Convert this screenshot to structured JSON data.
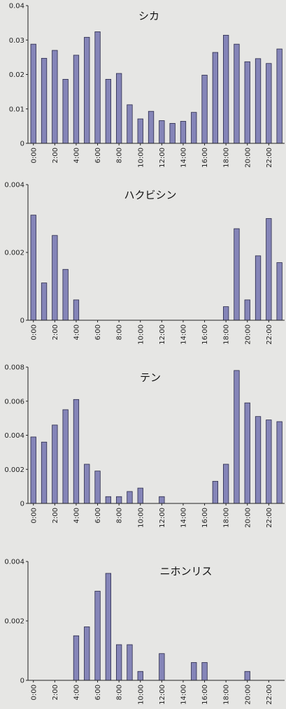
{
  "colors": {
    "bar": "#8585b8",
    "bar_stroke": "#2a2a4a",
    "axis": "#222222",
    "background": "#e6e6e4"
  },
  "chart_data": [
    {
      "type": "bar",
      "title": "シカ",
      "categories": [
        "0:00",
        "1:00",
        "2:00",
        "3:00",
        "4:00",
        "5:00",
        "6:00",
        "7:00",
        "8:00",
        "9:00",
        "10:00",
        "11:00",
        "12:00",
        "13:00",
        "14:00",
        "15:00",
        "16:00",
        "17:00",
        "18:00",
        "19:00",
        "20:00",
        "21:00",
        "22:00",
        "23:00"
      ],
      "tick_labels": [
        "0:00",
        "2:00",
        "4:00",
        "6:00",
        "8:00",
        "10:00",
        "12:00",
        "14:00",
        "16:00",
        "18:00",
        "20:00",
        "22:00"
      ],
      "values": [
        0.0288,
        0.0247,
        0.027,
        0.0186,
        0.0256,
        0.0308,
        0.0324,
        0.0186,
        0.0203,
        0.0112,
        0.0071,
        0.0093,
        0.0066,
        0.0058,
        0.0064,
        0.009,
        0.0198,
        0.0264,
        0.0314,
        0.0288,
        0.0237,
        0.0246,
        0.0232,
        0.0274
      ],
      "ylim": [
        0,
        0.04
      ],
      "yticks": [
        "0",
        "0.01",
        "0.02",
        "0.03",
        "0.04"
      ],
      "ytick_values": [
        0,
        0.01,
        0.02,
        0.03,
        0.04
      ],
      "xlabel": "",
      "ylabel": ""
    },
    {
      "type": "bar",
      "title": "ハクビシン",
      "categories": [
        "0:00",
        "1:00",
        "2:00",
        "3:00",
        "4:00",
        "5:00",
        "6:00",
        "7:00",
        "8:00",
        "9:00",
        "10:00",
        "11:00",
        "12:00",
        "13:00",
        "14:00",
        "15:00",
        "16:00",
        "17:00",
        "18:00",
        "19:00",
        "20:00",
        "21:00",
        "22:00",
        "23:00"
      ],
      "tick_labels": [
        "0:00",
        "2:00",
        "4:00",
        "6:00",
        "8:00",
        "10:00",
        "12:00",
        "14:00",
        "16:00",
        "18:00",
        "20:00",
        "22:00"
      ],
      "values": [
        0.0031,
        0.0011,
        0.0025,
        0.0015,
        0.0006,
        0,
        0,
        0,
        0,
        0,
        0,
        0,
        0,
        0,
        0,
        0,
        0,
        0,
        0.0004,
        0.0027,
        0.0006,
        0.0019,
        0.003,
        0.0017
      ],
      "ylim": [
        0,
        0.004
      ],
      "yticks": [
        "0",
        "0.002",
        "0.004"
      ],
      "ytick_values": [
        0,
        0.002,
        0.004
      ],
      "xlabel": "",
      "ylabel": ""
    },
    {
      "type": "bar",
      "title": "テン",
      "categories": [
        "0:00",
        "1:00",
        "2:00",
        "3:00",
        "4:00",
        "5:00",
        "6:00",
        "7:00",
        "8:00",
        "9:00",
        "10:00",
        "11:00",
        "12:00",
        "13:00",
        "14:00",
        "15:00",
        "16:00",
        "17:00",
        "18:00",
        "19:00",
        "20:00",
        "21:00",
        "22:00",
        "23:00"
      ],
      "tick_labels": [
        "0:00",
        "2:00",
        "4:00",
        "6:00",
        "8:00",
        "10:00",
        "12:00",
        "14:00",
        "16:00",
        "18:00",
        "20:00",
        "22:00"
      ],
      "values": [
        0.0039,
        0.0036,
        0.0046,
        0.0055,
        0.0061,
        0.0023,
        0.0019,
        0.0004,
        0.0004,
        0.0007,
        0.0009,
        0,
        0.0004,
        0,
        0,
        0,
        0,
        0.0013,
        0.0023,
        0.0078,
        0.0059,
        0.0051,
        0.0049,
        0.0048
      ],
      "ylim": [
        0,
        0.008
      ],
      "yticks": [
        "0",
        "0.002",
        "0.004",
        "0.006",
        "0.008"
      ],
      "ytick_values": [
        0,
        0.002,
        0.004,
        0.006,
        0.008
      ],
      "xlabel": "",
      "ylabel": ""
    },
    {
      "type": "bar",
      "title": "ニホンリス",
      "categories": [
        "0:00",
        "1:00",
        "2:00",
        "3:00",
        "4:00",
        "5:00",
        "6:00",
        "7:00",
        "8:00",
        "9:00",
        "10:00",
        "11:00",
        "12:00",
        "13:00",
        "14:00",
        "15:00",
        "16:00",
        "17:00",
        "18:00",
        "19:00",
        "20:00",
        "21:00",
        "22:00",
        "23:00"
      ],
      "tick_labels": [
        "0:00",
        "2:00",
        "4:00",
        "6:00",
        "8:00",
        "10:00",
        "12:00",
        "14:00",
        "16:00",
        "18:00",
        "20:00",
        "22:00"
      ],
      "values": [
        0,
        0,
        0,
        0,
        0.0015,
        0.0018,
        0.003,
        0.0036,
        0.0012,
        0.0012,
        0.0003,
        0,
        0.0009,
        0,
        0,
        0.0006,
        0.0006,
        0,
        0,
        0,
        0.0003,
        0,
        0,
        0
      ],
      "ylim": [
        0,
        0.004
      ],
      "yticks": [
        "0",
        "0.002",
        "0.004"
      ],
      "ytick_values": [
        0,
        0.002,
        0.004
      ],
      "xlabel": "",
      "ylabel": ""
    }
  ]
}
